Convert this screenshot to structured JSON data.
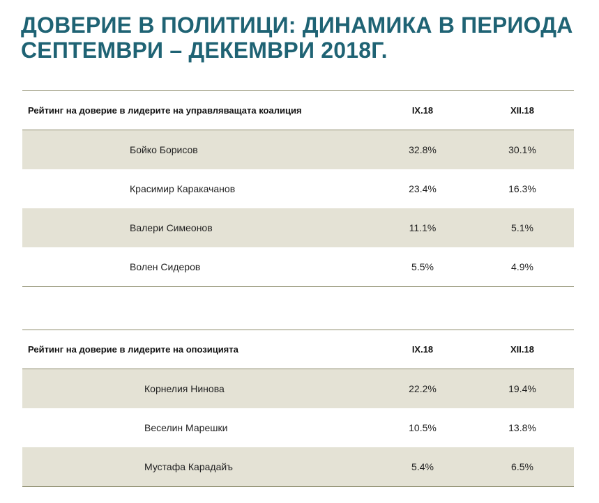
{
  "title": {
    "line1": "ДОВЕРИЕ В ПОЛИТИЦИ: ДИНАМИКА В ПЕРИОДА",
    "line2": "СЕПТЕМВРИ – ДЕКЕМВРИ 2018Г."
  },
  "coalition": {
    "header": "Рейтинг на доверие в лидерите на управляващата коалиция",
    "col_sep": "IX.18",
    "col_dec": "XII.18",
    "rows": [
      {
        "name": "Бойко Борисов",
        "sep": "32.8%",
        "dec": "30.1%"
      },
      {
        "name": "Красимир Каракачанов",
        "sep": "23.4%",
        "dec": "16.3%"
      },
      {
        "name": "Валери Симеонов",
        "sep": "11.1%",
        "dec": "5.1%"
      },
      {
        "name": "Волен Сидеров",
        "sep": "5.5%",
        "dec": "4.9%"
      }
    ]
  },
  "opposition": {
    "header": "Рейтинг на доверие в лидерите на опозицията",
    "col_sep": "IX.18",
    "col_dec": "XII.18",
    "rows": [
      {
        "name": "Корнелия Нинова",
        "sep": "22.2%",
        "dec": "19.4%"
      },
      {
        "name": "Веселин Марешки",
        "sep": "10.5%",
        "dec": "13.8%"
      },
      {
        "name": "Мустафа Карадайъ",
        "sep": "5.4%",
        "dec": "6.5%"
      }
    ]
  },
  "colors": {
    "title": "#1f6374",
    "row_shade": "#e4e2d5",
    "rule": "#8b8a6a"
  }
}
